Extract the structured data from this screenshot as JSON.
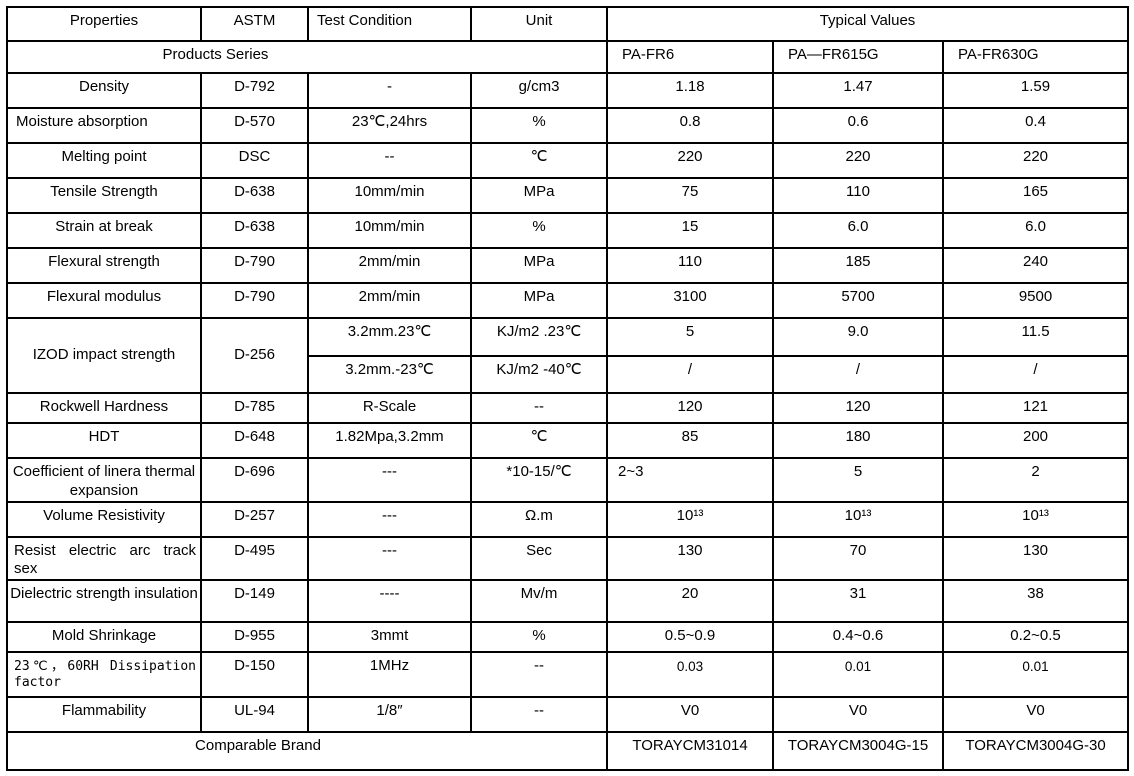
{
  "header": {
    "properties": "Properties",
    "astm": "ASTM",
    "test_condition": "Test Condition",
    "unit": "Unit",
    "typical_values": "Typical Values"
  },
  "products_series": {
    "label": "Products Series",
    "names": [
      "PA-FR6",
      "PA—FR615G",
      "PA-FR630G"
    ]
  },
  "rows": [
    {
      "property": "Density",
      "astm": "D-792",
      "test": "-",
      "unit": "g/cm3",
      "values": [
        "1.18",
        "1.47",
        "1.59"
      ]
    },
    {
      "property": "Moisture absorption",
      "astm": "D-570",
      "test": "23℃,24hrs",
      "unit": "%",
      "values": [
        "0.8",
        "0.6",
        "0.4"
      ]
    },
    {
      "property": "Melting point",
      "astm": "DSC",
      "test": "--",
      "unit": "℃",
      "values": [
        "220",
        "220",
        "220"
      ]
    },
    {
      "property": "Tensile Strength",
      "astm": "D-638",
      "test": "10mm/min",
      "unit": "MPa",
      "values": [
        "75",
        "110",
        "165"
      ]
    },
    {
      "property": "Strain at break",
      "astm": "D-638",
      "test": "10mm/min",
      "unit": "%",
      "values": [
        "15",
        "6.0",
        "6.0"
      ]
    },
    {
      "property": "Flexural strength",
      "astm": "D-790",
      "test": "2mm/min",
      "unit": "MPa",
      "values": [
        "110",
        "185",
        "240"
      ]
    },
    {
      "property": "Flexural modulus",
      "astm": "D-790",
      "test": "2mm/min",
      "unit": "MPa",
      "values": [
        "3100",
        "5700",
        "9500"
      ]
    },
    {
      "property": "Rockwell Hardness",
      "astm": "D-785",
      "test": "R-Scale",
      "unit": "--",
      "values": [
        "120",
        "120",
        "121"
      ]
    },
    {
      "property": "HDT",
      "astm": "D-648",
      "test": "1.82Mpa,3.2mm",
      "unit": "℃",
      "values": [
        "85",
        "180",
        "200"
      ]
    },
    {
      "property": "Coefficient of linera thermal expansion",
      "astm": "D-696",
      "test": "---",
      "unit": "*10-15/℃",
      "values": [
        "2~3",
        "5",
        "2"
      ]
    },
    {
      "property": "Volume Resistivity",
      "astm": "D-257",
      "test": "---",
      "unit": "Ω.m",
      "values": [
        "10¹³",
        "10¹³",
        "10¹³"
      ]
    },
    {
      "property": "Resist electric arc track sex",
      "astm": "D-495",
      "test": "---",
      "unit": "Sec",
      "values": [
        "130",
        "70",
        "130"
      ]
    },
    {
      "property": "Dielectric strength insulation",
      "astm": "D-149",
      "test": "----",
      "unit": "Mv/m",
      "values": [
        "20",
        "31",
        "38"
      ]
    },
    {
      "property": "Mold Shrinkage",
      "astm": "D-955",
      "test": "3mmt",
      "unit": "%",
      "values": [
        "0.5~0.9",
        "0.4~0.6",
        "0.2~0.5"
      ]
    },
    {
      "property": "23℃，60RH Dissipation factor",
      "astm": "D-150",
      "test": "1MHz",
      "unit": "--",
      "values": [
        "0.03",
        "0.01",
        "0.01"
      ]
    },
    {
      "property": "Flammability",
      "astm": "UL-94",
      "test": "1/8″",
      "unit": "--",
      "values": [
        "V0",
        "V0",
        "V0"
      ]
    }
  ],
  "izod": {
    "property": "IZOD impact strength",
    "astm": "D-256",
    "sub_rows": [
      {
        "test": "3.2mm.23℃",
        "unit": "KJ/m2 .23℃",
        "values": [
          "5",
          "9.0",
          "11.5"
        ]
      },
      {
        "test": "3.2mm.-23℃",
        "unit": "KJ/m2 -40℃",
        "values": [
          "/",
          "/",
          "/"
        ]
      }
    ]
  },
  "comparable": {
    "label": "Comparable Brand",
    "brands": [
      "TORAYCM31014",
      "TORAYCM3004G-15",
      "TORAYCM3004G-30"
    ]
  }
}
